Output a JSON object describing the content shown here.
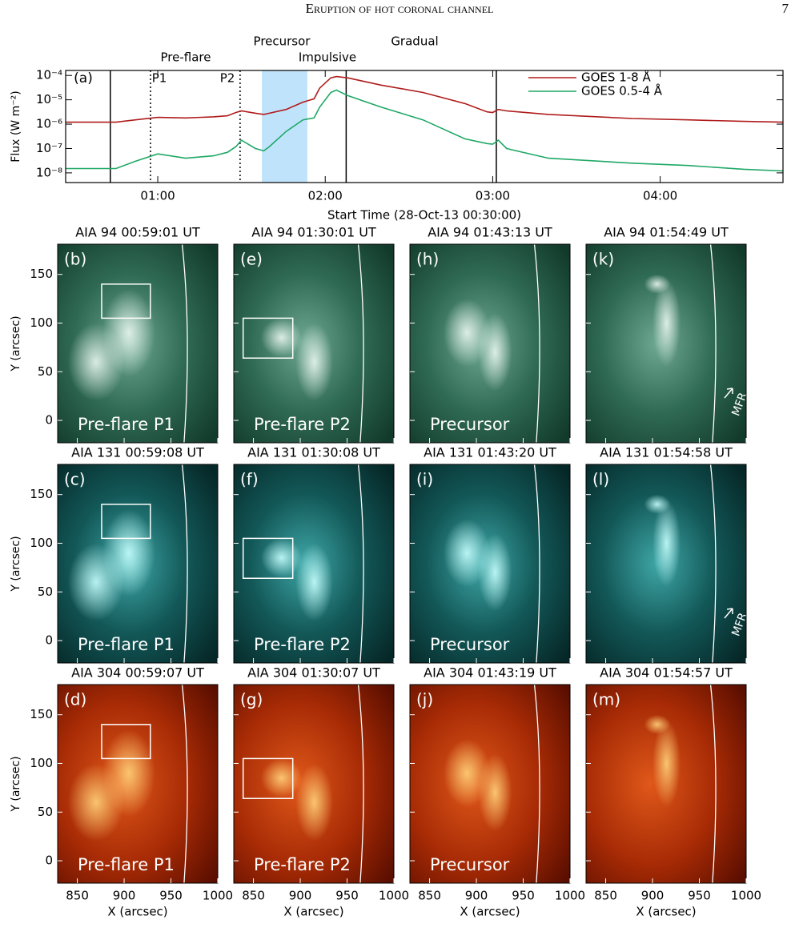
{
  "header": {
    "title": "Eruption of hot coronal channel",
    "page": "7"
  },
  "chart_data": {
    "type": "line",
    "xlabel": "Start Time (28-Oct-13 00:30:00)",
    "ylabel": "Flux (W m⁻²)",
    "panel_label": "(a)",
    "annotations": [
      "Precursor",
      "Gradual",
      "Pre-flare",
      "Impulsive",
      "P1",
      "P2"
    ],
    "x": [
      27,
      45,
      52,
      60,
      70,
      80,
      85,
      88,
      90,
      95,
      98,
      100,
      106,
      112,
      116,
      118,
      122,
      124,
      128,
      140,
      155,
      170,
      178,
      180,
      182,
      185,
      200,
      230,
      250,
      270,
      284
    ],
    "xlim": [
      27,
      284
    ],
    "xticks": [
      {
        "value": 60,
        "label": "01:00"
      },
      {
        "value": 120,
        "label": "02:00"
      },
      {
        "value": 180,
        "label": "03:00"
      },
      {
        "value": 240,
        "label": "04:00"
      }
    ],
    "log_y": true,
    "ylim": [
      4e-09,
      0.00016
    ],
    "yticks": [
      {
        "value": 1e-08,
        "label": "10⁻⁸"
      },
      {
        "value": 1e-07,
        "label": "10⁻⁷"
      },
      {
        "value": 1e-06,
        "label": "10⁻⁶"
      },
      {
        "value": 1e-05,
        "label": "10⁻⁵"
      },
      {
        "value": 0.0001,
        "label": "10⁻⁴"
      }
    ],
    "series": [
      {
        "name": "GOES 1-8 Å",
        "color": "#b01c1c",
        "values": [
          1.2e-06,
          1.2e-06,
          1.5e-06,
          1.9e-06,
          1.8e-06,
          2e-06,
          2.2e-06,
          3e-06,
          3.5e-06,
          2.8e-06,
          2.5e-06,
          2.8e-06,
          4e-06,
          8e-06,
          1.1e-05,
          3e-05,
          8e-05,
          9e-05,
          8e-05,
          4e-05,
          2e-05,
          7e-06,
          3.2e-06,
          3e-06,
          4e-06,
          3.5e-06,
          2.5e-06,
          1.7e-06,
          1.5e-06,
          1.3e-06,
          1.2e-06
        ]
      },
      {
        "name": "GOES 0.5-4 Å",
        "color": "#1fa866",
        "values": [
          1.5e-08,
          1.5e-08,
          3e-08,
          6e-08,
          4e-08,
          5e-08,
          7e-08,
          1.2e-07,
          2.2e-07,
          1e-07,
          8e-08,
          1.2e-07,
          5e-07,
          1.5e-06,
          1.8e-06,
          5e-06,
          2e-05,
          2.5e-05,
          1.5e-05,
          5e-06,
          1.5e-06,
          2.5e-07,
          1.6e-07,
          1.5e-07,
          2.2e-07,
          1e-07,
          4e-08,
          2.5e-08,
          2e-08,
          1.4e-08,
          1.2e-08
        ]
      }
    ],
    "vlines": [
      {
        "x": 43,
        "style": "solid"
      },
      {
        "x": 57.4,
        "style": "dotted"
      },
      {
        "x": 89.5,
        "style": "dotted"
      },
      {
        "x": 127.5,
        "style": "solid"
      },
      {
        "x": 181.3,
        "style": "solid"
      }
    ],
    "shaded": {
      "from": 97.3,
      "to": 113.6,
      "color": "#bfe3fb"
    },
    "legend": "upper right"
  },
  "panel_axes": {
    "xlim": [
      829,
      1000
    ],
    "ylim": [
      -23,
      181
    ],
    "xticks": [
      850,
      900,
      950,
      1000
    ],
    "yticks": [
      0,
      50,
      100,
      150
    ],
    "xlabel": "X (arcsec)",
    "ylabel": "Y (arcsec)"
  },
  "panels": [
    [
      {
        "title": "AIA 94 00:59:01 UT",
        "letter": "(b)",
        "label": "Pre-flare P1"
      },
      {
        "title": "AIA 94 01:30:01 UT",
        "letter": "(e)",
        "label": "Pre-flare P2"
      },
      {
        "title": "AIA 94 01:43:13 UT",
        "letter": "(h)",
        "label": "Precursor"
      },
      {
        "title": "AIA 94 01:54:49 UT",
        "letter": "(k)",
        "note": "MFR"
      }
    ],
    [
      {
        "title": "AIA 131 00:59:08 UT",
        "letter": "(c)",
        "label": "Pre-flare P1"
      },
      {
        "title": "AIA 131 01:30:08 UT",
        "letter": "(f)",
        "label": "Pre-flare P2"
      },
      {
        "title": "AIA 131 01:43:20 UT",
        "letter": "(i)",
        "label": "Precursor"
      },
      {
        "title": "AIA 131 01:54:58 UT",
        "letter": "(l)",
        "note": "MFR"
      }
    ],
    [
      {
        "title": "AIA 304 00:59:07 UT",
        "letter": "(d)",
        "label": "Pre-flare P1"
      },
      {
        "title": "AIA 304 01:30:07 UT",
        "letter": "(g)",
        "label": "Pre-flare P2"
      },
      {
        "title": "AIA 304 01:43:19 UT",
        "letter": "(j)",
        "label": "Precursor"
      },
      {
        "title": "AIA 304 01:54:57 UT",
        "letter": "(m)"
      }
    ]
  ]
}
